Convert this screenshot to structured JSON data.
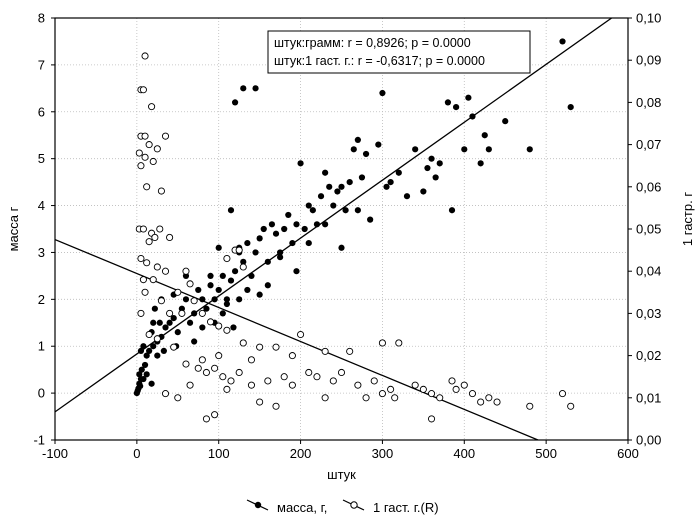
{
  "chart_data": {
    "type": "scatter",
    "xlabel": "штук",
    "ylabel": "масса г",
    "y2label": "1 гастр. г",
    "xlim": [
      -100,
      600
    ],
    "ylim": [
      -1,
      8
    ],
    "y2lim": [
      0.0,
      0.1
    ],
    "xticks": [
      "-100",
      "0",
      "100",
      "200",
      "300",
      "400",
      "500",
      "600"
    ],
    "yticks": [
      "-1",
      "0",
      "1",
      "2",
      "3",
      "4",
      "5",
      "6",
      "7",
      "8"
    ],
    "y2ticks": [
      "0,00",
      "0,01",
      "0,02",
      "0,03",
      "0,04",
      "0,05",
      "0,06",
      "0,07",
      "0,08",
      "0,09",
      "0,10"
    ],
    "grid": true,
    "stats_box": [
      "штук:грамм:  r =  0,8926; p = 0.0000",
      "штук:1 гаст. г.:  r = -0,6317; p = 0.0000"
    ],
    "legend_position": "bottom",
    "series": [
      {
        "name": "масса, г,",
        "axis": "left",
        "marker": "filled",
        "points": [
          [
            0,
            0
          ],
          [
            1,
            0.05
          ],
          [
            2,
            0.1
          ],
          [
            3,
            0.2
          ],
          [
            4,
            0.15
          ],
          [
            5,
            0.3
          ],
          [
            6,
            0.5
          ],
          [
            3,
            0.4
          ],
          [
            8,
            0.3
          ],
          [
            10,
            0.6
          ],
          [
            12,
            0.8
          ],
          [
            15,
            0.9
          ],
          [
            5,
            0.9
          ],
          [
            8,
            1.0
          ],
          [
            20,
            1.0
          ],
          [
            25,
            1.1
          ],
          [
            18,
            1.3
          ],
          [
            30,
            1.2
          ],
          [
            28,
            1.5
          ],
          [
            35,
            1.4
          ],
          [
            40,
            1.5
          ],
          [
            22,
            1.8
          ],
          [
            45,
            1.6
          ],
          [
            50,
            1.3
          ],
          [
            55,
            1.8
          ],
          [
            60,
            2.0
          ],
          [
            65,
            1.5
          ],
          [
            70,
            1.7
          ],
          [
            75,
            2.2
          ],
          [
            80,
            2.0
          ],
          [
            85,
            1.8
          ],
          [
            90,
            2.3
          ],
          [
            95,
            2.0
          ],
          [
            100,
            2.2
          ],
          [
            105,
            2.5
          ],
          [
            110,
            2.0
          ],
          [
            115,
            2.4
          ],
          [
            120,
            2.6
          ],
          [
            125,
            3.0
          ],
          [
            130,
            2.8
          ],
          [
            135,
            3.2
          ],
          [
            140,
            2.5
          ],
          [
            145,
            3.0
          ],
          [
            150,
            3.3
          ],
          [
            155,
            3.5
          ],
          [
            160,
            2.8
          ],
          [
            165,
            3.6
          ],
          [
            170,
            3.4
          ],
          [
            175,
            3.0
          ],
          [
            180,
            3.5
          ],
          [
            185,
            3.8
          ],
          [
            190,
            3.2
          ],
          [
            195,
            3.6
          ],
          [
            200,
            4.9
          ],
          [
            205,
            3.5
          ],
          [
            210,
            4.0
          ],
          [
            215,
            3.9
          ],
          [
            220,
            3.6
          ],
          [
            225,
            4.2
          ],
          [
            230,
            4.7
          ],
          [
            235,
            4.4
          ],
          [
            240,
            4.0
          ],
          [
            245,
            4.3
          ],
          [
            250,
            4.4
          ],
          [
            255,
            3.9
          ],
          [
            260,
            4.5
          ],
          [
            265,
            5.2
          ],
          [
            270,
            5.4
          ],
          [
            275,
            4.6
          ],
          [
            280,
            5.1
          ],
          [
            285,
            3.7
          ],
          [
            295,
            5.3
          ],
          [
            300,
            6.4
          ],
          [
            305,
            4.4
          ],
          [
            310,
            4.5
          ],
          [
            320,
            4.7
          ],
          [
            330,
            4.2
          ],
          [
            340,
            5.2
          ],
          [
            350,
            4.3
          ],
          [
            355,
            4.8
          ],
          [
            360,
            5.0
          ],
          [
            365,
            4.6
          ],
          [
            370,
            4.9
          ],
          [
            380,
            6.2
          ],
          [
            385,
            3.9
          ],
          [
            390,
            6.1
          ],
          [
            400,
            5.2
          ],
          [
            405,
            6.3
          ],
          [
            410,
            5.9
          ],
          [
            420,
            4.9
          ],
          [
            425,
            5.5
          ],
          [
            430,
            5.2
          ],
          [
            450,
            5.8
          ],
          [
            480,
            5.2
          ],
          [
            520,
            7.5
          ],
          [
            530,
            6.1
          ],
          [
            120,
            6.2
          ],
          [
            130,
            6.5
          ],
          [
            145,
            6.5
          ],
          [
            115,
            3.9
          ],
          [
            125,
            3.1
          ],
          [
            100,
            3.1
          ],
          [
            90,
            2.5
          ],
          [
            60,
            2.5
          ],
          [
            45,
            2.1
          ],
          [
            30,
            2.0
          ],
          [
            20,
            1.5
          ],
          [
            12,
            0.4
          ],
          [
            18,
            0.2
          ],
          [
            25,
            0.8
          ],
          [
            33,
            0.9
          ],
          [
            48,
            1.0
          ],
          [
            70,
            1.1
          ],
          [
            80,
            1.4
          ],
          [
            95,
            1.5
          ],
          [
            105,
            1.7
          ],
          [
            110,
            1.9
          ],
          [
            118,
            1.4
          ],
          [
            125,
            2.0
          ],
          [
            135,
            2.2
          ],
          [
            160,
            2.3
          ],
          [
            175,
            2.9
          ],
          [
            195,
            2.6
          ],
          [
            210,
            3.2
          ],
          [
            230,
            3.6
          ],
          [
            250,
            3.1
          ],
          [
            270,
            3.9
          ],
          [
            150,
            2.1
          ]
        ]
      },
      {
        "name": "1 гаст. г.(R)",
        "axis": "right",
        "marker": "open",
        "points": [
          [
            10,
            0.091
          ],
          [
            5,
            0.083
          ],
          [
            8,
            0.083
          ],
          [
            18,
            0.079
          ],
          [
            5,
            0.072
          ],
          [
            10,
            0.072
          ],
          [
            35,
            0.072
          ],
          [
            15,
            0.07
          ],
          [
            25,
            0.069
          ],
          [
            3,
            0.068
          ],
          [
            10,
            0.067
          ],
          [
            20,
            0.066
          ],
          [
            5,
            0.065
          ],
          [
            12,
            0.06
          ],
          [
            30,
            0.059
          ],
          [
            3,
            0.05
          ],
          [
            8,
            0.05
          ],
          [
            18,
            0.049
          ],
          [
            28,
            0.05
          ],
          [
            22,
            0.048
          ],
          [
            15,
            0.047
          ],
          [
            40,
            0.048
          ],
          [
            5,
            0.043
          ],
          [
            12,
            0.042
          ],
          [
            25,
            0.041
          ],
          [
            35,
            0.04
          ],
          [
            60,
            0.04
          ],
          [
            8,
            0.038
          ],
          [
            20,
            0.038
          ],
          [
            50,
            0.035
          ],
          [
            65,
            0.037
          ],
          [
            70,
            0.033
          ],
          [
            120,
            0.045
          ],
          [
            125,
            0.045
          ],
          [
            110,
            0.043
          ],
          [
            130,
            0.041
          ],
          [
            10,
            0.035
          ],
          [
            30,
            0.033
          ],
          [
            40,
            0.03
          ],
          [
            55,
            0.03
          ],
          [
            80,
            0.03
          ],
          [
            90,
            0.028
          ],
          [
            100,
            0.027
          ],
          [
            110,
            0.026
          ],
          [
            130,
            0.023
          ],
          [
            150,
            0.022
          ],
          [
            170,
            0.022
          ],
          [
            200,
            0.025
          ],
          [
            230,
            0.021
          ],
          [
            260,
            0.021
          ],
          [
            300,
            0.023
          ],
          [
            320,
            0.023
          ],
          [
            5,
            0.03
          ],
          [
            15,
            0.025
          ],
          [
            25,
            0.024
          ],
          [
            45,
            0.022
          ],
          [
            60,
            0.018
          ],
          [
            75,
            0.017
          ],
          [
            85,
            0.016
          ],
          [
            95,
            0.017
          ],
          [
            105,
            0.015
          ],
          [
            115,
            0.014
          ],
          [
            125,
            0.016
          ],
          [
            140,
            0.013
          ],
          [
            160,
            0.014
          ],
          [
            180,
            0.015
          ],
          [
            190,
            0.013
          ],
          [
            210,
            0.016
          ],
          [
            220,
            0.015
          ],
          [
            240,
            0.014
          ],
          [
            250,
            0.016
          ],
          [
            270,
            0.013
          ],
          [
            290,
            0.014
          ],
          [
            300,
            0.011
          ],
          [
            310,
            0.012
          ],
          [
            340,
            0.013
          ],
          [
            350,
            0.012
          ],
          [
            360,
            0.011
          ],
          [
            370,
            0.01
          ],
          [
            390,
            0.012
          ],
          [
            400,
            0.013
          ],
          [
            410,
            0.011
          ],
          [
            420,
            0.009
          ],
          [
            430,
            0.01
          ],
          [
            440,
            0.009
          ],
          [
            480,
            0.008
          ],
          [
            520,
            0.011
          ],
          [
            530,
            0.008
          ],
          [
            85,
            0.005
          ],
          [
            95,
            0.006
          ],
          [
            110,
            0.012
          ],
          [
            150,
            0.009
          ],
          [
            170,
            0.008
          ],
          [
            230,
            0.01
          ],
          [
            280,
            0.01
          ],
          [
            315,
            0.01
          ],
          [
            360,
            0.005
          ],
          [
            385,
            0.014
          ],
          [
            35,
            0.011
          ],
          [
            50,
            0.01
          ],
          [
            65,
            0.013
          ],
          [
            80,
            0.019
          ],
          [
            100,
            0.02
          ],
          [
            140,
            0.019
          ],
          [
            190,
            0.02
          ]
        ]
      }
    ],
    "fit_lines": [
      {
        "series": "масса, г,",
        "axis": "left",
        "x": [
          -100,
          580
        ],
        "y": [
          -0.4,
          8.0
        ]
      },
      {
        "series": "1 гаст. г.(R)",
        "axis": "right",
        "x": [
          -100,
          490
        ],
        "y": [
          0.0475,
          0.0
        ]
      }
    ]
  }
}
